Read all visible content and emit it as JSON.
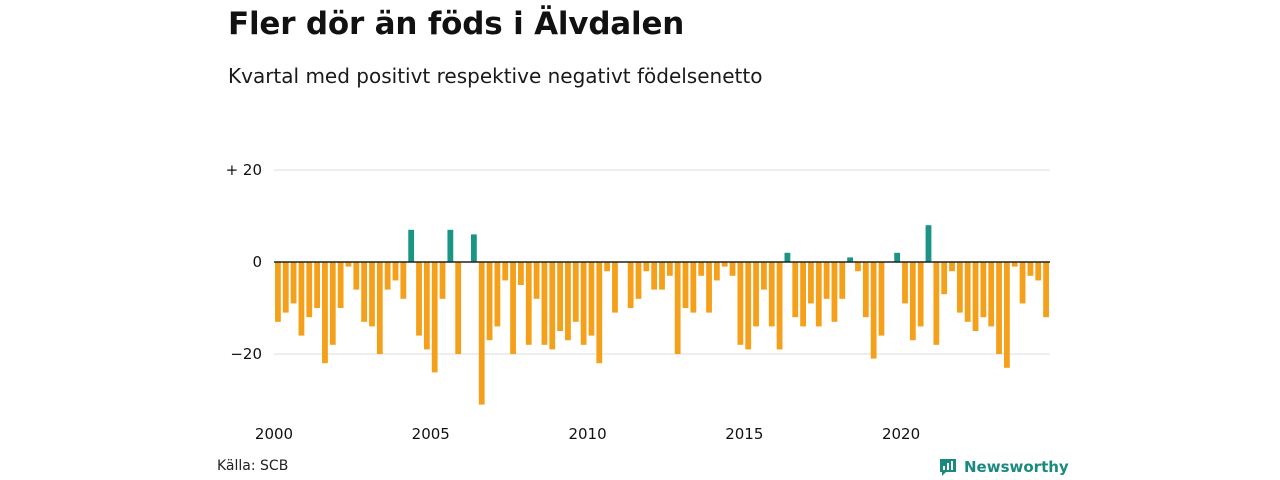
{
  "chart_data": {
    "type": "bar",
    "title": "Fler dör än föds i Älvdalen",
    "subtitle": "Kvartal med positivt respektive negativt födelsenetto",
    "xlabel": "",
    "ylabel": "",
    "x_start": 2000,
    "periods_per_year": 4,
    "ylim": [
      -31,
      20
    ],
    "y_ticks": [
      20,
      0,
      -20
    ],
    "y_tick_labels": [
      "+ 20",
      "0",
      "−20"
    ],
    "x_ticks": [
      2000,
      2005,
      2010,
      2015,
      2020
    ],
    "x_tick_labels": [
      "2000",
      "2005",
      "2010",
      "2015",
      "2020"
    ],
    "grid": true,
    "colors": {
      "positive": "#1a9485",
      "negative": "#f5a01a",
      "grid": "#dddddd",
      "zero_line": "#222222"
    },
    "values": [
      -13,
      -11,
      -9,
      -16,
      -12,
      -10,
      -22,
      -18,
      -10,
      -1,
      -6,
      -13,
      -14,
      -20,
      -6,
      -4,
      -8,
      7,
      -16,
      -19,
      -24,
      -8,
      7,
      -20,
      0,
      6,
      -31,
      -17,
      -14,
      -4,
      -20,
      -5,
      -18,
      -8,
      -18,
      -19,
      -15,
      -17,
      -13,
      -18,
      -16,
      -22,
      -2,
      -11,
      0,
      -10,
      -8,
      -2,
      -6,
      -6,
      -3,
      -20,
      -10,
      -11,
      -3,
      -11,
      -4,
      -1,
      -3,
      -18,
      -19,
      -14,
      -6,
      -14,
      -19,
      2,
      -12,
      -14,
      -9,
      -14,
      -8,
      -13,
      -8,
      1,
      -2,
      -12,
      -21,
      -16,
      0,
      2,
      -9,
      -17,
      -14,
      8,
      -18,
      -7,
      -2,
      -11,
      -13,
      -15,
      -12,
      -14,
      -20,
      -23,
      -1,
      -9,
      -3,
      -4,
      -12
    ]
  },
  "footer": {
    "source": "Källa: SCB",
    "brand": "Newsworthy"
  },
  "icons": {
    "brand_logo": "newsworthy-logo-icon"
  }
}
